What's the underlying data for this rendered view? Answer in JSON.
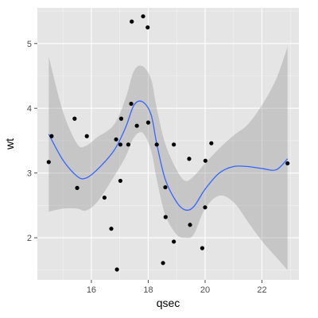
{
  "chart_data": {
    "type": "scatter",
    "title": "",
    "xlabel": "qsec",
    "ylabel": "wt",
    "xlim": [
      14.1,
      23.3
    ],
    "ylim": [
      1.35,
      5.55
    ],
    "x_ticks": [
      16,
      18,
      20,
      22
    ],
    "y_ticks": [
      2,
      3,
      4,
      5
    ],
    "x_tick_labels": [
      "16",
      "18",
      "20",
      "22"
    ],
    "y_tick_labels": [
      "2",
      "3",
      "4",
      "5"
    ],
    "grid": true,
    "legend": "none",
    "colors": {
      "panel_background": "#e5e5e5",
      "grid": "#ffffff",
      "point": "#000000",
      "smooth_line": "#3366ff",
      "confidence_band": "#999999"
    },
    "points": [
      {
        "x": 14.5,
        "y": 3.17
      },
      {
        "x": 14.6,
        "y": 3.57
      },
      {
        "x": 15.41,
        "y": 3.84
      },
      {
        "x": 15.5,
        "y": 2.77
      },
      {
        "x": 15.84,
        "y": 3.57
      },
      {
        "x": 16.46,
        "y": 2.62
      },
      {
        "x": 16.7,
        "y": 2.14
      },
      {
        "x": 16.87,
        "y": 3.52
      },
      {
        "x": 16.9,
        "y": 1.51
      },
      {
        "x": 17.02,
        "y": 2.88
      },
      {
        "x": 17.02,
        "y": 3.44
      },
      {
        "x": 17.05,
        "y": 3.84
      },
      {
        "x": 17.3,
        "y": 3.44
      },
      {
        "x": 17.4,
        "y": 4.07
      },
      {
        "x": 17.42,
        "y": 5.34
      },
      {
        "x": 17.6,
        "y": 3.73
      },
      {
        "x": 17.82,
        "y": 5.42
      },
      {
        "x": 17.98,
        "y": 5.25
      },
      {
        "x": 18.0,
        "y": 3.78
      },
      {
        "x": 18.3,
        "y": 3.44
      },
      {
        "x": 18.52,
        "y": 1.61
      },
      {
        "x": 18.6,
        "y": 2.78
      },
      {
        "x": 18.61,
        "y": 2.32
      },
      {
        "x": 18.9,
        "y": 1.94
      },
      {
        "x": 18.9,
        "y": 3.44
      },
      {
        "x": 19.44,
        "y": 3.22
      },
      {
        "x": 19.47,
        "y": 2.2
      },
      {
        "x": 19.9,
        "y": 1.84
      },
      {
        "x": 20.0,
        "y": 2.47
      },
      {
        "x": 20.01,
        "y": 3.19
      },
      {
        "x": 20.22,
        "y": 3.46
      },
      {
        "x": 22.9,
        "y": 3.15
      }
    ],
    "smooth": {
      "x": [
        14.5,
        15.0,
        15.5,
        15.8,
        16.2,
        16.8,
        17.2,
        17.5,
        17.8,
        18.1,
        18.3,
        18.6,
        19.0,
        19.3,
        19.6,
        20.0,
        20.5,
        21.0,
        21.5,
        22.0,
        22.5,
        22.9
      ],
      "y": [
        3.6,
        3.2,
        2.95,
        2.92,
        3.05,
        3.35,
        3.7,
        4.05,
        4.1,
        3.9,
        3.45,
        2.9,
        2.55,
        2.43,
        2.48,
        2.75,
        3.0,
        3.1,
        3.1,
        3.07,
        3.05,
        3.22
      ],
      "lower": [
        2.4,
        2.45,
        2.45,
        2.42,
        2.55,
        2.95,
        3.25,
        3.55,
        3.62,
        3.35,
        2.9,
        2.35,
        2.05,
        2.0,
        2.05,
        2.45,
        2.65,
        2.55,
        2.25,
        1.95,
        1.7,
        1.5
      ],
      "upper": [
        4.8,
        3.95,
        3.45,
        3.42,
        3.55,
        3.75,
        4.15,
        4.58,
        4.65,
        4.45,
        4.0,
        3.45,
        3.05,
        2.88,
        2.95,
        3.15,
        3.38,
        3.58,
        3.75,
        4.05,
        4.45,
        4.95
      ]
    }
  }
}
